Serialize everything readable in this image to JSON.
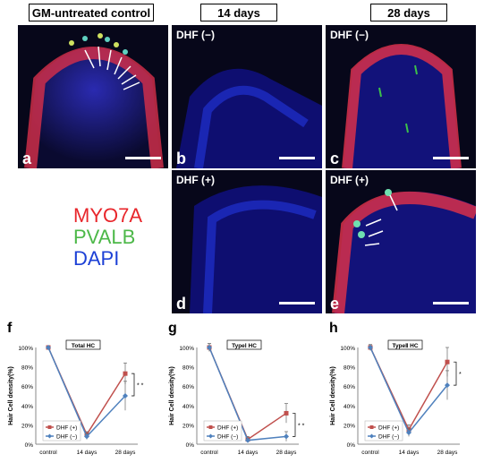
{
  "headers": [
    "GM-untreated control",
    "14 days",
    "28 days"
  ],
  "panels": {
    "a": {
      "letter": "a",
      "label": ""
    },
    "b": {
      "letter": "b",
      "label": "DHF (−)"
    },
    "c": {
      "letter": "c",
      "label": "DHF (−)"
    },
    "d": {
      "letter": "d",
      "label": "DHF (+)"
    },
    "e": {
      "letter": "e",
      "label": "DHF (+)"
    }
  },
  "stains": {
    "myo7a": "MYO7A",
    "pvalb": "PVALB",
    "dapi": "DAPI"
  },
  "colors": {
    "myo7a": "#e8262b",
    "pvalb": "#4cb848",
    "dapi": "#1c40d6",
    "dhf_plus": "#c0504d",
    "dhf_minus": "#4f81bd"
  },
  "chart_data": [
    {
      "letter": "f",
      "type": "line",
      "title": "Total HC",
      "ylabel": "Hair Cell density(%)",
      "categories": [
        "control",
        "14 days",
        "28 days"
      ],
      "yticks": [
        "0%",
        "20%",
        "40%",
        "60%",
        "80%",
        "100%"
      ],
      "ylim": [
        0,
        100
      ],
      "series": [
        {
          "name": "DHF (+)",
          "marker": "square",
          "values": [
            100,
            10,
            73
          ],
          "err": [
            0,
            3,
            11
          ]
        },
        {
          "name": "DHF (−)",
          "marker": "diamond",
          "values": [
            100,
            8,
            50
          ],
          "err": [
            0,
            3,
            15
          ]
        }
      ],
      "significance": "* *"
    },
    {
      "letter": "g",
      "type": "line",
      "title": "TypeⅠ HC",
      "ylabel": "Hair Cell density(%)",
      "categories": [
        "control",
        "14 days",
        "28 days"
      ],
      "yticks": [
        "0%",
        "20%",
        "40%",
        "60%",
        "80%",
        "100%"
      ],
      "ylim": [
        0,
        100
      ],
      "series": [
        {
          "name": "DHF (+)",
          "marker": "square",
          "values": [
            100,
            5,
            32
          ],
          "err": [
            4,
            3,
            10
          ]
        },
        {
          "name": "DHF (−)",
          "marker": "diamond",
          "values": [
            100,
            4,
            8
          ],
          "err": [
            4,
            2,
            5
          ]
        }
      ],
      "significance": "* *"
    },
    {
      "letter": "h",
      "type": "line",
      "title": "TypeⅡ HC",
      "ylabel": "Hair Cell density(%)",
      "categories": [
        "control",
        "14 days",
        "28 days"
      ],
      "yticks": [
        "0%",
        "20%",
        "40%",
        "60%",
        "80%",
        "100%"
      ],
      "ylim": [
        0,
        100
      ],
      "series": [
        {
          "name": "DHF (+)",
          "marker": "square",
          "values": [
            100,
            15,
            85
          ],
          "err": [
            3,
            5,
            15
          ]
        },
        {
          "name": "DHF (−)",
          "marker": "diamond",
          "values": [
            100,
            12,
            61
          ],
          "err": [
            3,
            4,
            15
          ]
        }
      ],
      "significance": "*"
    }
  ]
}
